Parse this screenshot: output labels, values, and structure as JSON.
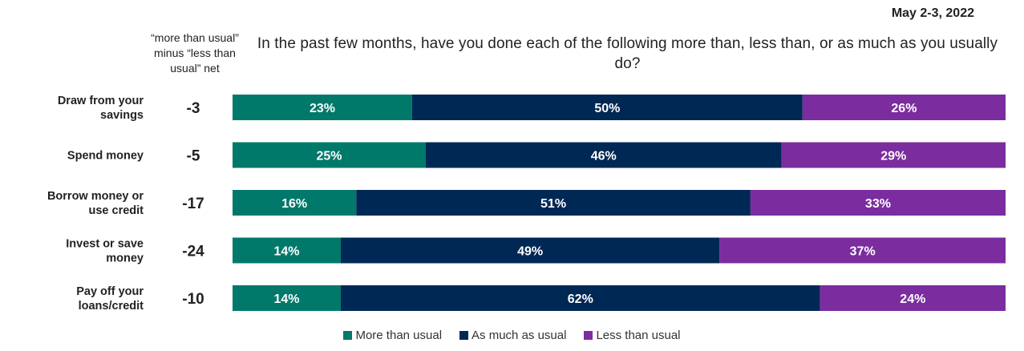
{
  "header": {
    "date": "May 2-3, 2022",
    "net_note": "“more than usual” minus “less than usual” net",
    "question": "In the past few months, have you done each of the following more than, less than, or as much as you usually do?"
  },
  "colors": {
    "more": "#00796B",
    "same": "#002855",
    "less": "#7B2C9E"
  },
  "chart_data": {
    "type": "bar",
    "orientation": "horizontal-stacked-100",
    "title": "In the past few months, have you done each of the following more than, less than, or as much as you usually do?",
    "categories": [
      [
        "Draw from your",
        "savings"
      ],
      [
        "Spend money"
      ],
      [
        "Borrow money or",
        "use credit"
      ],
      [
        "Invest or save",
        "money"
      ],
      [
        "Pay off your",
        "loans/credit"
      ]
    ],
    "net": [
      "-3",
      "-5",
      "-17",
      "-24",
      "-10"
    ],
    "series": [
      {
        "name": "More than usual",
        "values": [
          23,
          25,
          16,
          14,
          14
        ],
        "labels": [
          "23%",
          "25%",
          "16%",
          "14%",
          "14%"
        ]
      },
      {
        "name": "As much as usual",
        "values": [
          50,
          46,
          51,
          49,
          62
        ],
        "labels": [
          "50%",
          "46%",
          "51%",
          "49%",
          "62%"
        ]
      },
      {
        "name": "Less than usual",
        "values": [
          26,
          29,
          33,
          37,
          24
        ],
        "labels": [
          "26%",
          "29%",
          "33%",
          "37%",
          "24%"
        ]
      }
    ],
    "legend": "bottom-center"
  }
}
